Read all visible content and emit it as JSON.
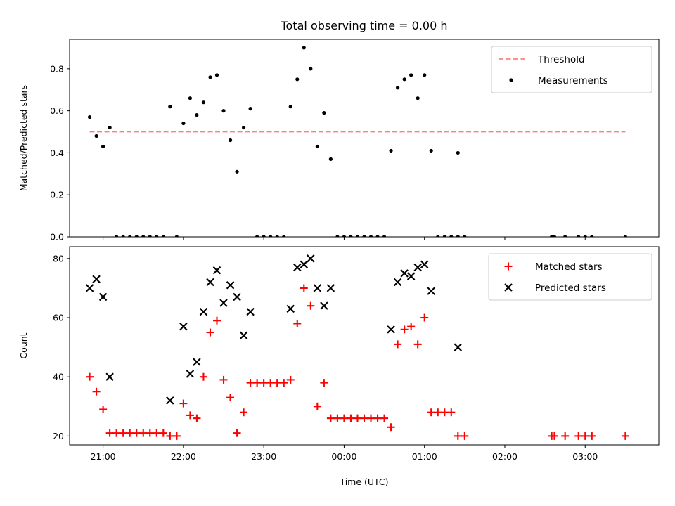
{
  "figure": {
    "title": "Total observing time = 0.00 h",
    "xlabel": "Time (UTC)",
    "x_ticks": [
      "21:00",
      "22:00",
      "23:00",
      "00:00",
      "01:00",
      "02:00",
      "03:00"
    ]
  },
  "chart_data": [
    {
      "type": "scatter",
      "title": "Total observing time = 0.00 h",
      "xlabel": "",
      "ylabel": "Matched/Predicted stars",
      "x_ticks": [
        "21:00",
        "22:00",
        "23:00",
        "00:00",
        "01:00",
        "02:00",
        "03:00"
      ],
      "y_ticks": [
        "0.0",
        "0.2",
        "0.4",
        "0.6",
        "0.8"
      ],
      "ylim": [
        0,
        0.94
      ],
      "xlim": [
        "20:35",
        "03:55"
      ],
      "legend_position": "upper right",
      "grid": false,
      "series": [
        {
          "name": "Threshold",
          "kind": "dashed-line",
          "color": "#ff7f7f",
          "x": [
            "20:50",
            "03:30"
          ],
          "y": [
            0.5,
            0.5
          ]
        },
        {
          "name": "Measurements",
          "kind": "dot",
          "color": "#000000",
          "points": [
            [
              "20:50",
              0.57
            ],
            [
              "20:55",
              0.48
            ],
            [
              "21:00",
              0.43
            ],
            [
              "21:05",
              0.52
            ],
            [
              "21:10",
              0.0
            ],
            [
              "21:15",
              0.0
            ],
            [
              "21:20",
              0.0
            ],
            [
              "21:25",
              0.0
            ],
            [
              "21:30",
              0.0
            ],
            [
              "21:35",
              0.0
            ],
            [
              "21:40",
              0.0
            ],
            [
              "21:45",
              0.0
            ],
            [
              "21:50",
              0.62
            ],
            [
              "21:55",
              0.0
            ],
            [
              "22:00",
              0.54
            ],
            [
              "22:05",
              0.66
            ],
            [
              "22:10",
              0.58
            ],
            [
              "22:15",
              0.64
            ],
            [
              "22:20",
              0.76
            ],
            [
              "22:25",
              0.77
            ],
            [
              "22:30",
              0.6
            ],
            [
              "22:35",
              0.46
            ],
            [
              "22:40",
              0.31
            ],
            [
              "22:45",
              0.52
            ],
            [
              "22:50",
              0.61
            ],
            [
              "22:55",
              0.0
            ],
            [
              "23:00",
              0.0
            ],
            [
              "23:05",
              0.0
            ],
            [
              "23:10",
              0.0
            ],
            [
              "23:15",
              0.0
            ],
            [
              "23:20",
              0.62
            ],
            [
              "23:25",
              0.75
            ],
            [
              "23:30",
              0.9
            ],
            [
              "23:35",
              0.8
            ],
            [
              "23:40",
              0.43
            ],
            [
              "23:45",
              0.59
            ],
            [
              "23:50",
              0.37
            ],
            [
              "23:55",
              0.0
            ],
            [
              "00:00",
              0.0
            ],
            [
              "00:05",
              0.0
            ],
            [
              "00:10",
              0.0
            ],
            [
              "00:15",
              0.0
            ],
            [
              "00:20",
              0.0
            ],
            [
              "00:25",
              0.0
            ],
            [
              "00:30",
              0.0
            ],
            [
              "00:35",
              0.41
            ],
            [
              "00:40",
              0.71
            ],
            [
              "00:45",
              0.75
            ],
            [
              "00:50",
              0.77
            ],
            [
              "00:55",
              0.66
            ],
            [
              "01:00",
              0.77
            ],
            [
              "01:05",
              0.41
            ],
            [
              "01:10",
              0.0
            ],
            [
              "01:15",
              0.0
            ],
            [
              "01:20",
              0.0
            ],
            [
              "01:25",
              0.0
            ],
            [
              "01:25",
              0.4
            ],
            [
              "01:30",
              0.0
            ],
            [
              "02:35",
              0.0
            ],
            [
              "02:36",
              0.0
            ],
            [
              "02:37",
              0.0
            ],
            [
              "02:45",
              0.0
            ],
            [
              "02:55",
              0.0
            ],
            [
              "03:00",
              0.0
            ],
            [
              "03:05",
              0.0
            ],
            [
              "03:30",
              0.0
            ]
          ]
        }
      ]
    },
    {
      "type": "scatter",
      "title": "",
      "xlabel": "Time (UTC)",
      "ylabel": "Count",
      "x_ticks": [
        "21:00",
        "22:00",
        "23:00",
        "00:00",
        "01:00",
        "02:00",
        "03:00"
      ],
      "y_ticks": [
        "20",
        "40",
        "60",
        "80"
      ],
      "ylim": [
        17,
        84
      ],
      "xlim": [
        "20:35",
        "03:55"
      ],
      "legend_position": "upper right",
      "grid": false,
      "series": [
        {
          "name": "Matched stars",
          "kind": "plus",
          "color": "#ff0000",
          "points": [
            [
              "20:50",
              40
            ],
            [
              "20:55",
              35
            ],
            [
              "21:00",
              29
            ],
            [
              "21:05",
              21
            ],
            [
              "21:10",
              21
            ],
            [
              "21:15",
              21
            ],
            [
              "21:20",
              21
            ],
            [
              "21:25",
              21
            ],
            [
              "21:30",
              21
            ],
            [
              "21:35",
              21
            ],
            [
              "21:40",
              21
            ],
            [
              "21:45",
              21
            ],
            [
              "21:50",
              20
            ],
            [
              "21:55",
              20
            ],
            [
              "22:00",
              31
            ],
            [
              "22:05",
              27
            ],
            [
              "22:10",
              26
            ],
            [
              "22:15",
              40
            ],
            [
              "22:20",
              55
            ],
            [
              "22:25",
              59
            ],
            [
              "22:30",
              39
            ],
            [
              "22:35",
              33
            ],
            [
              "22:40",
              21
            ],
            [
              "22:45",
              28
            ],
            [
              "22:50",
              38
            ],
            [
              "22:55",
              38
            ],
            [
              "23:00",
              38
            ],
            [
              "23:05",
              38
            ],
            [
              "23:10",
              38
            ],
            [
              "23:15",
              38
            ],
            [
              "23:20",
              39
            ],
            [
              "23:25",
              58
            ],
            [
              "23:30",
              70
            ],
            [
              "23:35",
              64
            ],
            [
              "23:40",
              30
            ],
            [
              "23:45",
              38
            ],
            [
              "23:50",
              26
            ],
            [
              "23:55",
              26
            ],
            [
              "00:00",
              26
            ],
            [
              "00:05",
              26
            ],
            [
              "00:10",
              26
            ],
            [
              "00:15",
              26
            ],
            [
              "00:20",
              26
            ],
            [
              "00:25",
              26
            ],
            [
              "00:30",
              26
            ],
            [
              "00:35",
              23
            ],
            [
              "00:40",
              51
            ],
            [
              "00:45",
              56
            ],
            [
              "00:50",
              57
            ],
            [
              "00:55",
              51
            ],
            [
              "01:00",
              60
            ],
            [
              "01:05",
              28
            ],
            [
              "01:10",
              28
            ],
            [
              "01:15",
              28
            ],
            [
              "01:20",
              28
            ],
            [
              "01:25",
              20
            ],
            [
              "01:30",
              20
            ],
            [
              "02:35",
              20
            ],
            [
              "02:37",
              20
            ],
            [
              "02:45",
              20
            ],
            [
              "02:55",
              20
            ],
            [
              "03:00",
              20
            ],
            [
              "03:05",
              20
            ],
            [
              "03:30",
              20
            ]
          ]
        },
        {
          "name": "Predicted stars",
          "kind": "x",
          "color": "#000000",
          "points": [
            [
              "20:50",
              70
            ],
            [
              "20:55",
              73
            ],
            [
              "21:00",
              67
            ],
            [
              "21:05",
              40
            ],
            [
              "21:50",
              32
            ],
            [
              "22:00",
              57
            ],
            [
              "22:05",
              41
            ],
            [
              "22:10",
              45
            ],
            [
              "22:15",
              62
            ],
            [
              "22:20",
              72
            ],
            [
              "22:25",
              76
            ],
            [
              "22:30",
              65
            ],
            [
              "22:35",
              71
            ],
            [
              "22:40",
              67
            ],
            [
              "22:45",
              54
            ],
            [
              "22:50",
              62
            ],
            [
              "23:20",
              63
            ],
            [
              "23:25",
              77
            ],
            [
              "23:30",
              78
            ],
            [
              "23:35",
              80
            ],
            [
              "23:40",
              70
            ],
            [
              "23:45",
              64
            ],
            [
              "23:50",
              70
            ],
            [
              "00:35",
              56
            ],
            [
              "00:40",
              72
            ],
            [
              "00:45",
              75
            ],
            [
              "00:50",
              74
            ],
            [
              "00:55",
              77
            ],
            [
              "01:00",
              78
            ],
            [
              "01:05",
              69
            ],
            [
              "01:25",
              50
            ]
          ]
        }
      ]
    }
  ]
}
